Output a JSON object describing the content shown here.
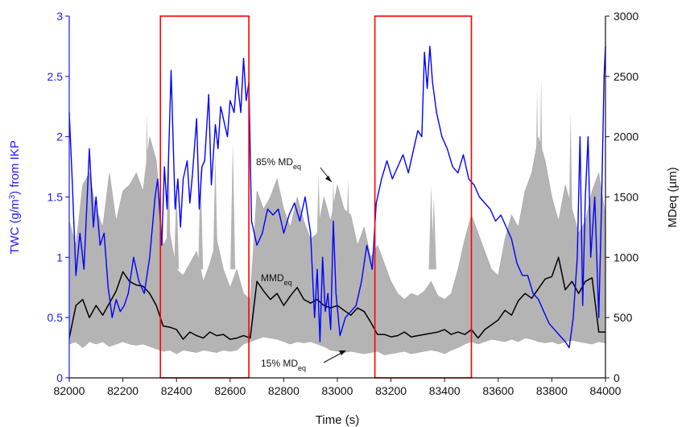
{
  "chart_data": {
    "type": "line",
    "xlabel": "Time (s)",
    "ylabel_left": {
      "text": "TWC (g/m",
      "sup": "3",
      "suffix": ") from IKP"
    },
    "ylabel_right": "MDeq (µm)",
    "xlim": [
      82000,
      84000
    ],
    "ylim_left": [
      0,
      3
    ],
    "ylim_right": [
      0,
      3000
    ],
    "x_ticks": [
      82000,
      82200,
      82400,
      82600,
      82800,
      83000,
      83200,
      83400,
      83600,
      83800,
      84000
    ],
    "y_ticks_left": [
      "0",
      "0.5",
      "1",
      "1.5",
      "2",
      "2.5",
      "3"
    ],
    "y_ticks_right": [
      0,
      500,
      1000,
      1500,
      2000,
      2500,
      3000
    ],
    "grid": false,
    "highlight_boxes": [
      {
        "x_start": 82340,
        "x_end": 82670
      },
      {
        "x_start": 83140,
        "x_end": 83500
      }
    ],
    "colors": {
      "twc": "#0000ff",
      "mmd": "#000000",
      "band": "#b4b4b4",
      "boxes": "#ff0000",
      "left_axis": "#0000ff"
    },
    "annotations": {
      "md85": {
        "main": "85% MD",
        "sub": "eq"
      },
      "mmd": {
        "main": "MMD",
        "sub": "eq"
      },
      "md15": {
        "main": "15% MD",
        "sub": "eq"
      }
    },
    "band_x": [
      82000,
      82025,
      82050,
      82075,
      82100,
      82125,
      82150,
      82175,
      82200,
      82225,
      82250,
      82275,
      82300,
      82325,
      82350,
      82375,
      82400,
      82425,
      82450,
      82475,
      82500,
      82525,
      82550,
      82575,
      82600,
      82625,
      82650,
      82675,
      82700,
      82725,
      82750,
      82775,
      82800,
      82825,
      82850,
      82875,
      82900,
      82925,
      82950,
      82975,
      83000,
      83025,
      83050,
      83075,
      83100,
      83125,
      83150,
      83175,
      83200,
      83225,
      83250,
      83275,
      83300,
      83325,
      83350,
      83375,
      83400,
      83425,
      83450,
      83475,
      83500,
      83525,
      83550,
      83575,
      83600,
      83625,
      83650,
      83675,
      83700,
      83725,
      83750,
      83775,
      83800,
      83825,
      83850,
      83875,
      83900,
      83925,
      83950,
      83975,
      84000
    ],
    "band_top_um": [
      1300,
      1100,
      1600,
      1700,
      1400,
      1250,
      1700,
      1300,
      1550,
      1600,
      1700,
      1550,
      2000,
      1800,
      1100,
      1200,
      900,
      850,
      950,
      1050,
      800,
      950,
      1150,
      900,
      750,
      900,
      700,
      650,
      1550,
      1400,
      1500,
      1650,
      1400,
      1250,
      1500,
      1300,
      1150,
      1200,
      1500,
      1300,
      1600,
      1400,
      1350,
      1100,
      1250,
      1000,
      1100,
      950,
      800,
      700,
      650,
      700,
      680,
      720,
      800,
      680,
      650,
      700,
      900,
      1150,
      1350,
      1200,
      1050,
      900,
      850,
      1150,
      1350,
      1250,
      1550,
      1700,
      2000,
      1800,
      1500,
      1300,
      1600,
      1400,
      1200,
      1300,
      1550,
      1700,
      1350
    ],
    "band_bottom_um": [
      280,
      300,
      250,
      300,
      280,
      300,
      260,
      280,
      300,
      280,
      270,
      280,
      260,
      240,
      220,
      230,
      200,
      230,
      220,
      210,
      230,
      220,
      210,
      230,
      220,
      230,
      280,
      300,
      320,
      340,
      330,
      320,
      300,
      280,
      300,
      290,
      300,
      280,
      260,
      230,
      220,
      210,
      220,
      210,
      200,
      210,
      220,
      190,
      200,
      210,
      220,
      200,
      210,
      220,
      230,
      220,
      200,
      230,
      250,
      280,
      300,
      280,
      300,
      320,
      310,
      300,
      320,
      300,
      330,
      320,
      300,
      290,
      300,
      280,
      300,
      310,
      300,
      290,
      280,
      300,
      290
    ],
    "spikes": [
      {
        "x": 82290,
        "top_um": 2200
      },
      {
        "x": 82370,
        "top_um": 1950
      },
      {
        "x": 82400,
        "top_um": 1600
      },
      {
        "x": 82490,
        "top_um": 1750
      },
      {
        "x": 82545,
        "top_um": 1850
      },
      {
        "x": 82610,
        "top_um": 1950
      },
      {
        "x": 82930,
        "top_um": 1700
      },
      {
        "x": 82985,
        "top_um": 1650
      },
      {
        "x": 83040,
        "top_um": 1650
      },
      {
        "x": 83350,
        "top_um": 1600
      },
      {
        "x": 83360,
        "top_um": 1500
      },
      {
        "x": 83745,
        "top_um": 2400
      },
      {
        "x": 83760,
        "top_um": 2500
      },
      {
        "x": 83870,
        "top_um": 2200
      }
    ],
    "mmd_x": [
      82000,
      82025,
      82050,
      82075,
      82100,
      82125,
      82150,
      82175,
      82200,
      82225,
      82250,
      82275,
      82300,
      82325,
      82350,
      82375,
      82400,
      82425,
      82450,
      82475,
      82500,
      82525,
      82550,
      82575,
      82600,
      82625,
      82650,
      82675,
      82700,
      82725,
      82750,
      82775,
      82800,
      82825,
      82850,
      82875,
      82900,
      82925,
      82950,
      82975,
      83000,
      83025,
      83050,
      83075,
      83100,
      83125,
      83150,
      83175,
      83200,
      83225,
      83250,
      83275,
      83300,
      83325,
      83350,
      83375,
      83400,
      83425,
      83450,
      83475,
      83500,
      83525,
      83550,
      83575,
      83600,
      83625,
      83650,
      83675,
      83700,
      83725,
      83750,
      83775,
      83800,
      83825,
      83850,
      83875,
      83900,
      83925,
      83950,
      83975,
      84000
    ],
    "mmd_um": [
      330,
      600,
      650,
      500,
      600,
      520,
      620,
      720,
      880,
      800,
      770,
      760,
      700,
      600,
      430,
      420,
      400,
      320,
      380,
      350,
      330,
      380,
      350,
      360,
      320,
      330,
      350,
      330,
      800,
      720,
      650,
      700,
      600,
      680,
      750,
      650,
      620,
      650,
      600,
      580,
      600,
      560,
      520,
      580,
      550,
      460,
      360,
      360,
      340,
      350,
      380,
      340,
      350,
      360,
      370,
      380,
      400,
      360,
      380,
      360,
      400,
      330,
      400,
      440,
      480,
      560,
      520,
      640,
      700,
      660,
      740,
      820,
      840,
      1000,
      730,
      800,
      700,
      800,
      830,
      380,
      380
    ],
    "twc_x": [
      82000,
      82010,
      82025,
      82040,
      82055,
      82075,
      82090,
      82100,
      82115,
      82130,
      82145,
      82160,
      82175,
      82190,
      82205,
      82220,
      82240,
      82260,
      82280,
      82300,
      82320,
      82330,
      82345,
      82355,
      82365,
      82380,
      82395,
      82405,
      82415,
      82425,
      82440,
      82450,
      82460,
      82475,
      82485,
      82495,
      82505,
      82520,
      82530,
      82545,
      82555,
      82565,
      82580,
      82590,
      82600,
      82615,
      82625,
      82640,
      82650,
      82660,
      82670,
      82680,
      82700,
      82720,
      82740,
      82760,
      82780,
      82800,
      82820,
      82840,
      82860,
      82880,
      82900,
      82915,
      82925,
      82935,
      82945,
      82955,
      82965,
      82975,
      82985,
      82995,
      83010,
      83030,
      83050,
      83070,
      83090,
      83110,
      83130,
      83145,
      83165,
      83185,
      83205,
      83225,
      83245,
      83265,
      83285,
      83300,
      83315,
      83325,
      83335,
      83345,
      83355,
      83370,
      83390,
      83410,
      83430,
      83450,
      83470,
      83490,
      83510,
      83530,
      83550,
      83570,
      83590,
      83610,
      83630,
      83650,
      83670,
      83690,
      83710,
      83730,
      83750,
      83770,
      83790,
      83810,
      83830,
      83850,
      83865,
      83880,
      83895,
      83905,
      83915,
      83925,
      83935,
      83945,
      83960,
      83975,
      83985,
      83995,
      84000
    ],
    "twc": [
      2.2,
      1.7,
      0.85,
      1.2,
      0.9,
      1.9,
      1.25,
      1.5,
      1.1,
      1.2,
      0.75,
      0.5,
      0.65,
      0.55,
      0.6,
      0.7,
      1.0,
      0.8,
      0.7,
      1.0,
      1.5,
      1.65,
      1.1,
      1.75,
      1.4,
      2.55,
      1.4,
      1.65,
      1.25,
      1.65,
      1.8,
      1.45,
      1.7,
      2.15,
      1.4,
      1.75,
      1.8,
      2.35,
      1.6,
      2.1,
      1.9,
      2.25,
      2.1,
      2.0,
      2.3,
      2.2,
      2.5,
      2.2,
      2.65,
      2.3,
      2.45,
      1.3,
      1.1,
      1.2,
      1.4,
      1.35,
      1.4,
      1.2,
      1.35,
      1.45,
      1.3,
      1.5,
      1.2,
      0.5,
      0.9,
      0.3,
      1.0,
      0.55,
      0.7,
      0.4,
      1.3,
      0.7,
      0.35,
      0.5,
      0.55,
      0.6,
      0.8,
      1.1,
      0.9,
      1.45,
      1.65,
      1.8,
      1.65,
      1.75,
      1.85,
      1.7,
      1.9,
      2.05,
      2.0,
      2.7,
      2.4,
      2.75,
      2.45,
      2.2,
      2.0,
      1.9,
      1.75,
      1.7,
      1.85,
      1.65,
      1.6,
      1.5,
      1.45,
      1.4,
      1.3,
      1.35,
      1.25,
      1.15,
      0.95,
      0.85,
      0.85,
      0.7,
      0.65,
      0.55,
      0.45,
      0.4,
      0.35,
      0.3,
      0.25,
      0.5,
      1.0,
      2.0,
      0.6,
      1.5,
      2.0,
      1.0,
      1.5,
      0.5,
      1.4,
      2.5,
      2.75
    ]
  }
}
